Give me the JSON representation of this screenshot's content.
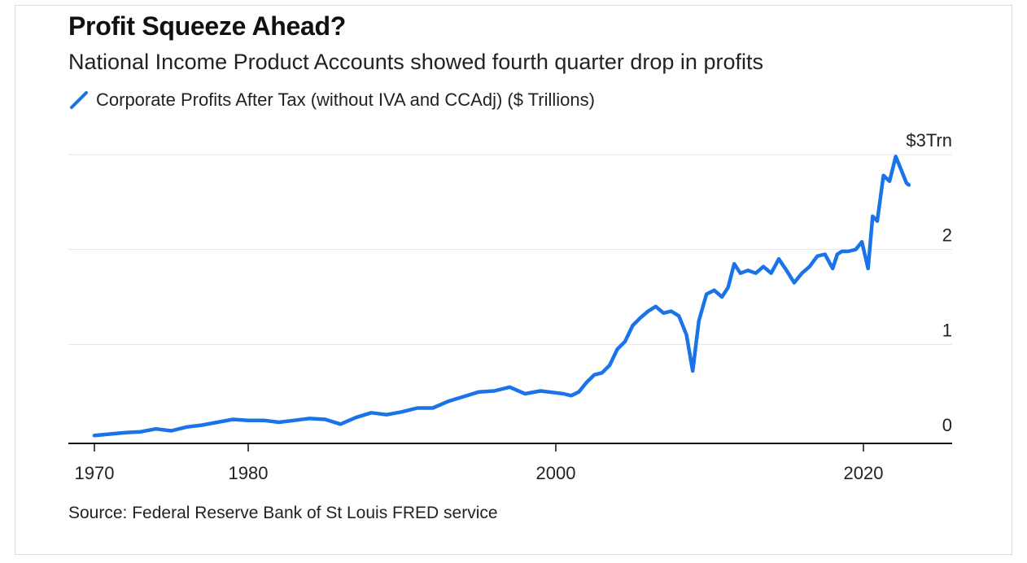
{
  "title": "Profit Squeeze Ahead?",
  "subtitle": "National Income Product Accounts showed fourth quarter drop in profits",
  "source": "Source: Federal Reserve Bank of St Louis FRED service",
  "colors": {
    "series": "#1a73e8",
    "grid": "#e6e6e6",
    "axis": "#111111"
  },
  "chart_data": {
    "type": "line",
    "title": "Profit Squeeze Ahead?",
    "subtitle": "National Income Product Accounts showed fourth quarter drop in profits",
    "xlim": [
      1970,
      2022
    ],
    "ylim": [
      0,
      3
    ],
    "grid": true,
    "legend_position": "top-left",
    "x_ticks": [
      {
        "value": 1970,
        "label": "1970"
      },
      {
        "value": 1980,
        "label": "1980"
      },
      {
        "value": 2000,
        "label": "2000"
      },
      {
        "value": 2020,
        "label": "2020"
      }
    ],
    "y_ticks": [
      {
        "value": 0,
        "label": "0"
      },
      {
        "value": 1,
        "label": "1"
      },
      {
        "value": 2,
        "label": "2"
      },
      {
        "value": 3,
        "label": "$3Trn"
      }
    ],
    "series": [
      {
        "name": "Corporate Profits After Tax (without IVA and CCAdj) ($ Trillions)",
        "color": "#1a73e8",
        "x": [
          1970,
          1972,
          1973,
          1974,
          1975,
          1976,
          1977,
          1978,
          1979,
          1980,
          1981,
          1982,
          1983,
          1984,
          1985,
          1986,
          1987,
          1988,
          1989,
          1990,
          1991,
          1992,
          1993,
          1994,
          1995,
          1996,
          1997,
          1998,
          1999,
          2000,
          2000.5,
          2001,
          2001.5,
          2002,
          2002.5,
          2003,
          2003.5,
          2004,
          2004.5,
          2005,
          2005.5,
          2006,
          2006.5,
          2007,
          2007.5,
          2008,
          2008.5,
          2008.9,
          2009.3,
          2009.8,
          2010.3,
          2010.8,
          2011.2,
          2011.6,
          2012,
          2012.5,
          2013,
          2013.5,
          2014,
          2014.5,
          2015,
          2015.5,
          2016,
          2016.5,
          2017,
          2017.5,
          2018,
          2018.3,
          2018.6,
          2019,
          2019.5,
          2019.9,
          2020.3,
          2020.6,
          2020.9,
          2021.3,
          2021.7,
          2022.1,
          2022.5,
          2022.8,
          2022.95
        ],
        "values": [
          0.04,
          0.07,
          0.08,
          0.11,
          0.09,
          0.13,
          0.15,
          0.18,
          0.21,
          0.2,
          0.2,
          0.18,
          0.2,
          0.22,
          0.21,
          0.16,
          0.23,
          0.28,
          0.26,
          0.29,
          0.33,
          0.33,
          0.4,
          0.45,
          0.5,
          0.51,
          0.55,
          0.48,
          0.51,
          0.49,
          0.48,
          0.46,
          0.5,
          0.6,
          0.68,
          0.7,
          0.78,
          0.95,
          1.03,
          1.2,
          1.28,
          1.35,
          1.4,
          1.33,
          1.35,
          1.3,
          1.1,
          0.72,
          1.25,
          1.53,
          1.57,
          1.5,
          1.6,
          1.85,
          1.75,
          1.78,
          1.75,
          1.82,
          1.75,
          1.9,
          1.78,
          1.65,
          1.75,
          1.82,
          1.93,
          1.95,
          1.8,
          1.95,
          1.98,
          1.98,
          2.0,
          2.08,
          1.8,
          2.35,
          2.3,
          2.78,
          2.72,
          2.98,
          2.82,
          2.7,
          2.68
        ]
      }
    ]
  }
}
